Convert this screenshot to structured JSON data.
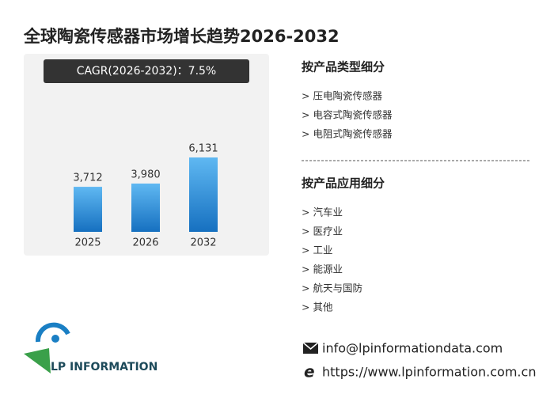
{
  "chart_data": {
    "type": "bar",
    "title": "全球陶瓷传感器市场增长趋势2026-2032",
    "annotation": "CAGR(2026-2032)：7.5%",
    "categories": [
      "2025",
      "2026",
      "2032"
    ],
    "values": [
      3712,
      3980,
      6131
    ],
    "value_labels": [
      "3,712",
      "3,980",
      "6,131"
    ],
    "color": "#2a8ad8"
  },
  "segments": [
    {
      "heading": "按产品类型细分",
      "items": [
        "> 压电陶瓷传感器",
        "> 电容式陶瓷传感器",
        "> 电阻式陶瓷传感器"
      ]
    },
    {
      "heading": "按产品应用细分",
      "items": [
        "> 汽车业",
        "> 医疗业",
        "> 工业",
        "> 能源业",
        "> 航天与国防",
        "> 其他"
      ]
    }
  ],
  "contact": {
    "email": "info@lpinformationdata.com",
    "website": "https://www.lpinformation.com.cn"
  },
  "logo": {
    "text": "LP INFORMATION"
  }
}
